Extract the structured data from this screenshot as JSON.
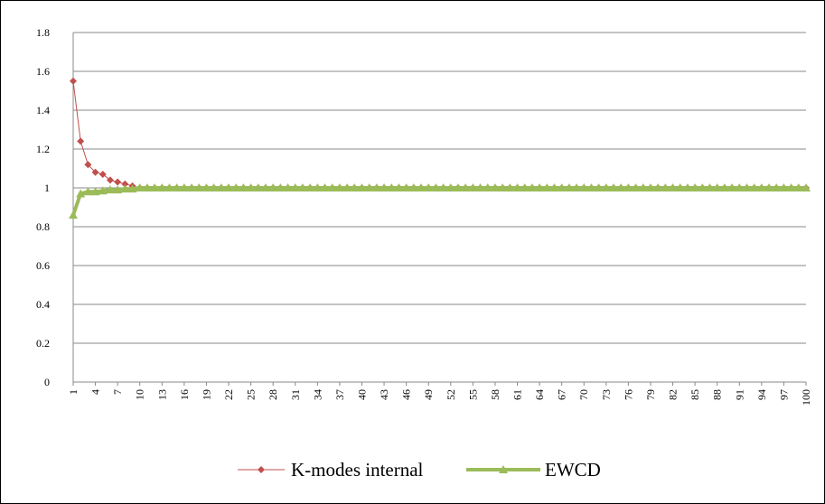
{
  "chart_data": {
    "type": "line",
    "title": "",
    "xlabel": "",
    "ylabel": "",
    "ylim": [
      0,
      1.8
    ],
    "yticks": [
      0,
      0.2,
      0.4,
      0.6,
      0.8,
      1,
      1.2,
      1.4,
      1.6,
      1.8
    ],
    "ytick_labels": [
      "0",
      "0.2",
      "0.4",
      "0.6",
      "0.8",
      "1",
      "1.2",
      "1.4",
      "1.6",
      "1.8"
    ],
    "x_range": [
      1,
      100
    ],
    "xtick_labels": [
      "1",
      "4",
      "7",
      "10",
      "13",
      "16",
      "19",
      "22",
      "25",
      "28",
      "31",
      "34",
      "37",
      "40",
      "43",
      "46",
      "49",
      "52",
      "55",
      "58",
      "61",
      "64",
      "67",
      "70",
      "73",
      "76",
      "79",
      "82",
      "85",
      "88",
      "91",
      "94",
      "97",
      "100"
    ],
    "grid": true,
    "legend_position": "bottom",
    "series": [
      {
        "name": "K-modes internal",
        "color": "#c0504d",
        "marker": "diamond",
        "points": [
          [
            1,
            1.55
          ],
          [
            2,
            1.24
          ],
          [
            3,
            1.12
          ],
          [
            4,
            1.08
          ],
          [
            5,
            1.07
          ],
          [
            6,
            1.04
          ],
          [
            7,
            1.03
          ],
          [
            8,
            1.02
          ],
          [
            9,
            1.01
          ],
          [
            10,
            1.0
          ]
        ],
        "tail_value": 1.0,
        "tail_from": 11,
        "tail_to": 100
      },
      {
        "name": "EWCD",
        "color": "#9bbb59",
        "marker": "triangle",
        "points": [
          [
            1,
            0.86
          ],
          [
            2,
            0.97
          ],
          [
            3,
            0.98
          ],
          [
            4,
            0.98
          ],
          [
            5,
            0.985
          ],
          [
            6,
            0.99
          ],
          [
            7,
            0.99
          ],
          [
            8,
            0.995
          ],
          [
            9,
            0.995
          ],
          [
            10,
            1.0
          ]
        ],
        "tail_value": 1.0,
        "tail_from": 11,
        "tail_to": 100
      }
    ]
  }
}
